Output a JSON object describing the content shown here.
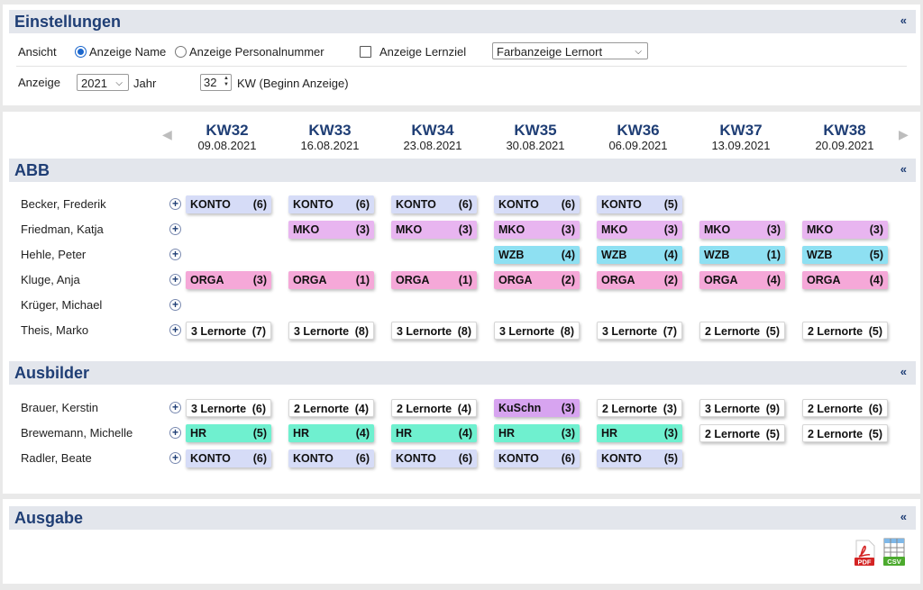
{
  "settings": {
    "title": "Einstellungen",
    "collapse": "«",
    "ansicht_label": "Ansicht",
    "radio_name": "Anzeige Name",
    "radio_personalnummer": "Anzeige Personalnummer",
    "checkbox_lernziel": "Anzeige Lernziel",
    "farb_select": "Farbanzeige Lernort",
    "anzeige_label": "Anzeige",
    "year_value": "2021",
    "year_label": "Jahr",
    "kw_value": "32",
    "kw_label": "KW (Beginn Anzeige)"
  },
  "weeks": [
    {
      "kw": "KW32",
      "date": "09.08.2021"
    },
    {
      "kw": "KW33",
      "date": "16.08.2021"
    },
    {
      "kw": "KW34",
      "date": "23.08.2021"
    },
    {
      "kw": "KW35",
      "date": "30.08.2021"
    },
    {
      "kw": "KW36",
      "date": "06.09.2021"
    },
    {
      "kw": "KW37",
      "date": "13.09.2021"
    },
    {
      "kw": "KW38",
      "date": "20.09.2021"
    }
  ],
  "colors": {
    "KONTO": "#d6dcf7",
    "MKO": "#e8b5f0",
    "WZB": "#8ee0f2",
    "ORGA": "#f5a8d8",
    "HR": "#6ff0cf",
    "KuSchn": "#d7a4f0",
    "white": "#ffffff"
  },
  "groups": [
    {
      "title": "ABB",
      "collapse": "«",
      "rows": [
        {
          "name": "Becker, Frederik",
          "cells": [
            [
              "KONTO",
              "(6)",
              "KONTO"
            ],
            [
              "KONTO",
              "(6)",
              "KONTO"
            ],
            [
              "KONTO",
              "(6)",
              "KONTO"
            ],
            [
              "KONTO",
              "(6)",
              "KONTO"
            ],
            [
              "KONTO",
              "(5)",
              "KONTO"
            ],
            null,
            null
          ]
        },
        {
          "name": "Friedman, Katja",
          "cells": [
            null,
            [
              "MKO",
              "(3)",
              "MKO"
            ],
            [
              "MKO",
              "(3)",
              "MKO"
            ],
            [
              "MKO",
              "(3)",
              "MKO"
            ],
            [
              "MKO",
              "(3)",
              "MKO"
            ],
            [
              "MKO",
              "(3)",
              "MKO"
            ],
            [
              "MKO",
              "(3)",
              "MKO"
            ]
          ]
        },
        {
          "name": "Hehle, Peter",
          "cells": [
            null,
            null,
            null,
            [
              "WZB",
              "(4)",
              "WZB"
            ],
            [
              "WZB",
              "(4)",
              "WZB"
            ],
            [
              "WZB",
              "(1)",
              "WZB"
            ],
            [
              "WZB",
              "(5)",
              "WZB"
            ]
          ]
        },
        {
          "name": "Kluge, Anja",
          "cells": [
            [
              "ORGA",
              "(3)",
              "ORGA"
            ],
            [
              "ORGA",
              "(1)",
              "ORGA"
            ],
            [
              "ORGA",
              "(1)",
              "ORGA"
            ],
            [
              "ORGA",
              "(2)",
              "ORGA"
            ],
            [
              "ORGA",
              "(2)",
              "ORGA"
            ],
            [
              "ORGA",
              "(4)",
              "ORGA"
            ],
            [
              "ORGA",
              "(4)",
              "ORGA"
            ]
          ]
        },
        {
          "name": "Krüger, Michael",
          "cells": [
            null,
            null,
            null,
            null,
            null,
            null,
            null
          ]
        },
        {
          "name": "Theis, Marko",
          "cells": [
            [
              "3 Lernorte",
              "(7)",
              "white"
            ],
            [
              "3 Lernorte",
              "(8)",
              "white"
            ],
            [
              "3 Lernorte",
              "(8)",
              "white"
            ],
            [
              "3 Lernorte",
              "(8)",
              "white"
            ],
            [
              "3 Lernorte",
              "(7)",
              "white"
            ],
            [
              "2 Lernorte",
              "(5)",
              "white"
            ],
            [
              "2 Lernorte",
              "(5)",
              "white"
            ]
          ]
        }
      ]
    },
    {
      "title": "Ausbilder",
      "collapse": "«",
      "rows": [
        {
          "name": "Brauer, Kerstin",
          "cells": [
            [
              "3 Lernorte",
              "(6)",
              "white"
            ],
            [
              "2 Lernorte",
              "(4)",
              "white"
            ],
            [
              "2 Lernorte",
              "(4)",
              "white"
            ],
            [
              "KuSchn",
              "(3)",
              "KuSchn"
            ],
            [
              "2 Lernorte",
              "(3)",
              "white"
            ],
            [
              "3 Lernorte",
              "(9)",
              "white"
            ],
            [
              "2 Lernorte",
              "(6)",
              "white"
            ]
          ]
        },
        {
          "name": "Brewemann, Michelle",
          "cells": [
            [
              "HR",
              "(5)",
              "HR"
            ],
            [
              "HR",
              "(4)",
              "HR"
            ],
            [
              "HR",
              "(4)",
              "HR"
            ],
            [
              "HR",
              "(3)",
              "HR"
            ],
            [
              "HR",
              "(3)",
              "HR"
            ],
            [
              "2 Lernorte",
              "(5)",
              "white"
            ],
            [
              "2 Lernorte",
              "(5)",
              "white"
            ]
          ]
        },
        {
          "name": "Radler, Beate",
          "cells": [
            [
              "KONTO",
              "(6)",
              "KONTO"
            ],
            [
              "KONTO",
              "(6)",
              "KONTO"
            ],
            [
              "KONTO",
              "(6)",
              "KONTO"
            ],
            [
              "KONTO",
              "(6)",
              "KONTO"
            ],
            [
              "KONTO",
              "(5)",
              "KONTO"
            ],
            null,
            null
          ]
        }
      ]
    }
  ],
  "output": {
    "title": "Ausgabe",
    "collapse": "«",
    "pdf_label": "PDF",
    "csv_label": "CSV"
  }
}
